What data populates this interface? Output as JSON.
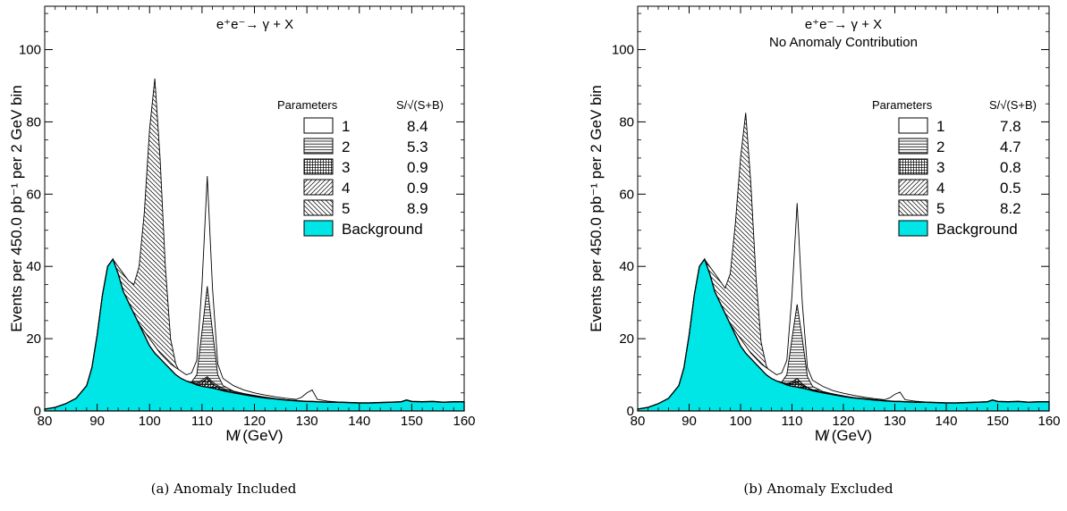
{
  "colors": {
    "background_fill": "#00e5e5",
    "line": "#000000"
  },
  "captions": [
    "(a) Anomaly Included",
    "(b) Anomaly Excluded"
  ],
  "chart_data": [
    {
      "type": "area",
      "title": "e⁺e⁻→ γ + X",
      "subtitle": "",
      "xlabel": "M̸ (GeV)",
      "ylabel": "Events per 450.0 pb⁻¹ per 2 GeV bin",
      "xlim": [
        80,
        160
      ],
      "ylim": [
        0,
        112
      ],
      "xticks": [
        80,
        90,
        100,
        110,
        120,
        130,
        140,
        150,
        160
      ],
      "yticks": [
        0,
        20,
        40,
        60,
        80,
        100
      ],
      "grid": false,
      "legend_position": "right",
      "legend_header": [
        "Parameters",
        "S/√(S+B)"
      ],
      "legend": [
        {
          "label": "1",
          "value": "8.4",
          "pattern": "open"
        },
        {
          "label": "2",
          "value": "5.3",
          "pattern": "horizontal"
        },
        {
          "label": "3",
          "value": "0.9",
          "pattern": "grid"
        },
        {
          "label": "4",
          "value": "0.9",
          "pattern": "diag-up"
        },
        {
          "label": "5",
          "value": "8.9",
          "pattern": "diag-down"
        },
        {
          "label": "Background",
          "value": "",
          "pattern": "fill"
        }
      ],
      "x": [
        80,
        82,
        84,
        86,
        88,
        89,
        90,
        91,
        92,
        93,
        94,
        95,
        96,
        97,
        98,
        99,
        100,
        101,
        102,
        103,
        104,
        105,
        106,
        107,
        108,
        109,
        110,
        111,
        112,
        113,
        114,
        116,
        118,
        120,
        122,
        124,
        126,
        128,
        129,
        130,
        131,
        132,
        134,
        136,
        138,
        140,
        142,
        144,
        146,
        148,
        149,
        150,
        152,
        154,
        156,
        158,
        160
      ],
      "series": [
        {
          "name": "Background",
          "values": [
            0.5,
            1,
            2,
            3.5,
            7,
            12,
            21,
            32,
            40,
            42,
            38,
            33,
            30,
            27,
            24,
            21,
            18,
            16,
            14.5,
            13,
            11.5,
            10,
            9,
            8.3,
            7.8,
            7.2,
            6.8,
            6.6,
            6.3,
            6,
            5.6,
            5,
            4.5,
            4,
            3.6,
            3.3,
            3,
            2.8,
            2.7,
            2.6,
            2.6,
            2.5,
            2.4,
            2.4,
            2.3,
            2.2,
            2.2,
            2.3,
            2.4,
            2.5,
            3,
            2.6,
            2.5,
            2.6,
            2.4,
            2.5,
            2.5
          ]
        },
        {
          "name": "1",
          "values": [
            0.5,
            1,
            2,
            3.5,
            7,
            12,
            21,
            32,
            40,
            42,
            38,
            33,
            30,
            27,
            24,
            22,
            20,
            18,
            16,
            14.5,
            13,
            12,
            11,
            10,
            10.5,
            14,
            35,
            65,
            34,
            13,
            9,
            7,
            5.8,
            5,
            4.4,
            3.9,
            3.5,
            3.2,
            3.8,
            5,
            5.8,
            3.2,
            2.7,
            2.5,
            2.4,
            2.3,
            2.3,
            2.4,
            2.5,
            2.6,
            3.1,
            2.7,
            2.6,
            2.7,
            2.5,
            2.6,
            2.6
          ]
        },
        {
          "name": "2",
          "values": [
            0.5,
            1,
            2,
            3.5,
            7,
            12,
            21,
            32,
            40,
            42,
            38,
            33,
            30,
            27,
            24,
            21,
            18,
            16,
            14.5,
            13,
            11.5,
            10,
            9,
            8.3,
            8,
            10,
            22,
            34.5,
            22,
            10,
            7,
            5.5,
            4.8,
            4.2,
            3.8,
            3.4,
            3.1,
            2.9,
            2.7,
            2.6,
            2.6,
            2.5,
            2.4,
            2.4,
            2.3,
            2.2,
            2.2,
            2.3,
            2.4,
            2.5,
            3,
            2.6,
            2.5,
            2.6,
            2.4,
            2.5,
            2.5
          ]
        },
        {
          "name": "3",
          "values": [
            0.5,
            1,
            2,
            3.5,
            7,
            12,
            21,
            32,
            40,
            42,
            38,
            33,
            30,
            27,
            24,
            21,
            18,
            16,
            14.5,
            13,
            11.5,
            10,
            9,
            8.3,
            7.8,
            7.6,
            8,
            9,
            7.5,
            6.5,
            5.8,
            5.1,
            4.6,
            4.1,
            3.7,
            3.3,
            3,
            2.8,
            2.7,
            2.6,
            2.6,
            2.5,
            2.4,
            2.4,
            2.3,
            2.2,
            2.2,
            2.3,
            2.4,
            2.5,
            3,
            2.6,
            2.5,
            2.6,
            2.4,
            2.5,
            2.5
          ]
        },
        {
          "name": "4",
          "values": [
            0.5,
            1,
            2,
            3.5,
            7,
            12,
            21,
            32,
            40,
            42,
            38,
            33,
            30,
            27,
            24,
            21,
            18,
            16,
            14.5,
            13,
            11.5,
            10,
            9,
            8.3,
            8,
            8,
            8.5,
            9.5,
            8,
            7,
            6.2,
            5.4,
            4.8,
            4.3,
            3.8,
            3.4,
            3.1,
            2.9,
            2.8,
            2.7,
            2.7,
            2.6,
            2.5,
            2.4,
            2.3,
            2.2,
            2.2,
            2.3,
            2.4,
            2.5,
            3,
            2.6,
            2.5,
            2.6,
            2.4,
            2.5,
            2.5
          ]
        },
        {
          "name": "5",
          "values": [
            0.5,
            1,
            2,
            3.5,
            7,
            12,
            21,
            32,
            40,
            42,
            40,
            38,
            36,
            35,
            40,
            55,
            78,
            92,
            70,
            40,
            20,
            13,
            10,
            8.8,
            8.2,
            7.6,
            7.2,
            7,
            6.7,
            6.4,
            6,
            5.4,
            4.8,
            4.2,
            3.8,
            3.4,
            3.1,
            2.9,
            2.8,
            2.7,
            2.7,
            2.6,
            2.5,
            2.4,
            2.3,
            2.2,
            2.2,
            2.3,
            2.4,
            2.5,
            3,
            2.6,
            2.5,
            2.6,
            2.4,
            2.5,
            2.5
          ]
        }
      ]
    },
    {
      "type": "area",
      "title": "e⁺e⁻→ γ + X",
      "subtitle": "No Anomaly Contribution",
      "xlabel": "M̸ (GeV)",
      "ylabel": "Events per 450.0 pb⁻¹ per 2 GeV bin",
      "xlim": [
        80,
        160
      ],
      "ylim": [
        0,
        112
      ],
      "xticks": [
        80,
        90,
        100,
        110,
        120,
        130,
        140,
        150,
        160
      ],
      "yticks": [
        0,
        20,
        40,
        60,
        80,
        100
      ],
      "grid": false,
      "legend_position": "right",
      "legend_header": [
        "Parameters",
        "S/√(S+B)"
      ],
      "legend": [
        {
          "label": "1",
          "value": "7.8",
          "pattern": "open"
        },
        {
          "label": "2",
          "value": "4.7",
          "pattern": "horizontal"
        },
        {
          "label": "3",
          "value": "0.8",
          "pattern": "grid"
        },
        {
          "label": "4",
          "value": "0.5",
          "pattern": "diag-up"
        },
        {
          "label": "5",
          "value": "8.2",
          "pattern": "diag-down"
        },
        {
          "label": "Background",
          "value": "",
          "pattern": "fill"
        }
      ],
      "x": [
        80,
        82,
        84,
        86,
        88,
        89,
        90,
        91,
        92,
        93,
        94,
        95,
        96,
        97,
        98,
        99,
        100,
        101,
        102,
        103,
        104,
        105,
        106,
        107,
        108,
        109,
        110,
        111,
        112,
        113,
        114,
        116,
        118,
        120,
        122,
        124,
        126,
        128,
        129,
        130,
        131,
        132,
        134,
        136,
        138,
        140,
        142,
        144,
        146,
        148,
        149,
        150,
        152,
        154,
        156,
        158,
        160
      ],
      "series": [
        {
          "name": "Background",
          "values": [
            0.5,
            1,
            2,
            3.5,
            7,
            12,
            21,
            32,
            40,
            42,
            38,
            33,
            30,
            27,
            24,
            21,
            18,
            16,
            14.5,
            13,
            11.5,
            10,
            9,
            8.3,
            7.8,
            7.2,
            6.8,
            6.6,
            6.3,
            6,
            5.6,
            5,
            4.5,
            4,
            3.6,
            3.3,
            3,
            2.8,
            2.7,
            2.6,
            2.6,
            2.5,
            2.4,
            2.4,
            2.3,
            2.2,
            2.2,
            2.3,
            2.4,
            2.5,
            3,
            2.6,
            2.5,
            2.6,
            2.4,
            2.5,
            2.5
          ]
        },
        {
          "name": "1",
          "values": [
            0.5,
            1,
            2,
            3.5,
            7,
            12,
            21,
            32,
            40,
            42,
            38,
            33,
            30,
            27,
            24,
            22,
            20,
            18,
            16,
            14.5,
            13,
            12,
            11,
            10,
            10.5,
            14,
            32,
            57.5,
            30,
            12,
            8.5,
            6.8,
            5.6,
            4.9,
            4.3,
            3.8,
            3.4,
            3.1,
            3.6,
            4.6,
            5.2,
            3.1,
            2.7,
            2.5,
            2.4,
            2.3,
            2.3,
            2.4,
            2.5,
            2.6,
            3.1,
            2.7,
            2.6,
            2.7,
            2.5,
            2.6,
            2.6
          ]
        },
        {
          "name": "2",
          "values": [
            0.5,
            1,
            2,
            3.5,
            7,
            12,
            21,
            32,
            40,
            42,
            38,
            33,
            30,
            27,
            24,
            21,
            18,
            16,
            14.5,
            13,
            11.5,
            10,
            9,
            8.3,
            8,
            10,
            20,
            29.5,
            20,
            9.5,
            6.8,
            5.4,
            4.7,
            4.1,
            3.7,
            3.4,
            3.1,
            2.9,
            2.7,
            2.6,
            2.6,
            2.5,
            2.4,
            2.4,
            2.3,
            2.2,
            2.2,
            2.3,
            2.4,
            2.5,
            3,
            2.6,
            2.5,
            2.6,
            2.4,
            2.5,
            2.5
          ]
        },
        {
          "name": "3",
          "values": [
            0.5,
            1,
            2,
            3.5,
            7,
            12,
            21,
            32,
            40,
            42,
            38,
            33,
            30,
            27,
            24,
            21,
            18,
            16,
            14.5,
            13,
            11.5,
            10,
            9,
            8.3,
            7.8,
            7.6,
            8,
            9,
            7.5,
            6.5,
            5.8,
            5.1,
            4.6,
            4.1,
            3.7,
            3.3,
            3,
            2.8,
            2.7,
            2.6,
            2.6,
            2.5,
            2.4,
            2.4,
            2.3,
            2.2,
            2.2,
            2.3,
            2.4,
            2.5,
            3,
            2.6,
            2.5,
            2.6,
            2.4,
            2.5,
            2.5
          ]
        },
        {
          "name": "4",
          "values": [
            0.5,
            1,
            2,
            3.5,
            7,
            12,
            21,
            32,
            40,
            42,
            38,
            33,
            30,
            27,
            24,
            21,
            18,
            16,
            14.5,
            13,
            11.5,
            10,
            9,
            8.3,
            7.9,
            7.6,
            7.6,
            8,
            7,
            6.5,
            5.9,
            5.2,
            4.7,
            4.2,
            3.7,
            3.4,
            3.1,
            2.9,
            2.8,
            2.7,
            2.7,
            2.6,
            2.5,
            2.4,
            2.3,
            2.2,
            2.2,
            2.3,
            2.4,
            2.5,
            3,
            2.6,
            2.5,
            2.6,
            2.4,
            2.5,
            2.5
          ]
        },
        {
          "name": "5",
          "values": [
            0.5,
            1,
            2,
            3.5,
            7,
            12,
            21,
            32,
            40,
            42,
            40,
            38,
            36,
            34,
            38,
            52,
            70,
            82.5,
            63,
            37,
            19,
            12.5,
            9.8,
            8.7,
            8.1,
            7.5,
            7.1,
            6.9,
            6.6,
            6.3,
            5.9,
            5.3,
            4.7,
            4.1,
            3.7,
            3.4,
            3.1,
            2.9,
            2.8,
            2.7,
            2.7,
            2.6,
            2.5,
            2.4,
            2.3,
            2.2,
            2.2,
            2.3,
            2.4,
            2.5,
            3,
            2.6,
            2.5,
            2.6,
            2.4,
            2.5,
            2.5
          ]
        }
      ]
    }
  ]
}
